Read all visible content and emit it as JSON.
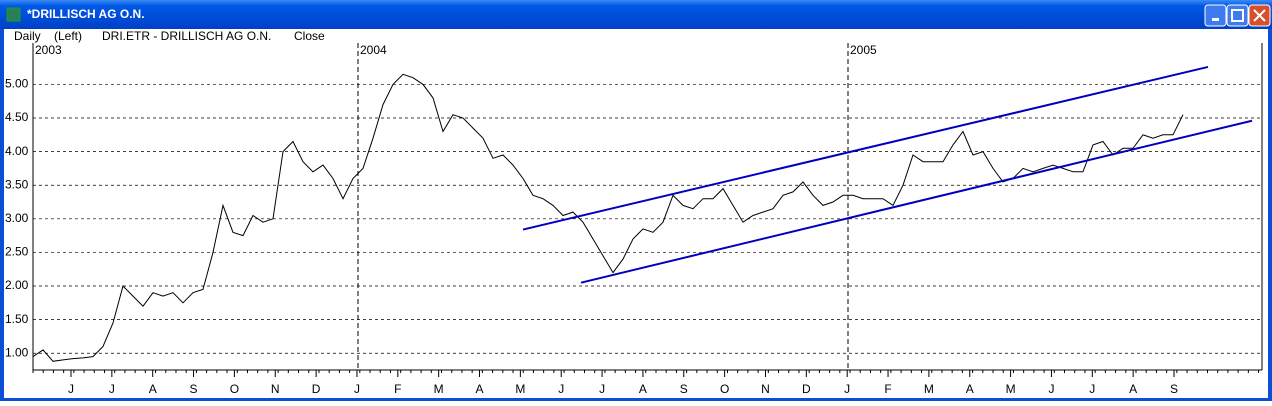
{
  "window": {
    "title": "*DRILLISCH AG O.N."
  },
  "chart_data": {
    "type": "line",
    "period": "Daily",
    "axis_side": "(Left)",
    "symbol": "DRI.ETR - DRILLISCH AG O.N.",
    "field": "Close",
    "years": [
      "2003",
      "2004",
      "2005"
    ],
    "months": [
      "J",
      "J",
      "A",
      "S",
      "O",
      "N",
      "D",
      "J",
      "F",
      "M",
      "A",
      "M",
      "J",
      "J",
      "A",
      "S",
      "O",
      "N",
      "D",
      "J",
      "F",
      "M",
      "A",
      "M",
      "J",
      "J",
      "A",
      "S"
    ],
    "ylim": [
      0.78,
      5.81
    ],
    "yticks": [
      {
        "value": 1,
        "label": "1.00"
      },
      {
        "value": 1.5,
        "label": "1.50"
      },
      {
        "value": 2,
        "label": "2.00"
      },
      {
        "value": 2.5,
        "label": "2.50"
      },
      {
        "value": 3,
        "label": "3.00"
      },
      {
        "value": 3.5,
        "label": "3.50"
      },
      {
        "value": 4,
        "label": "4.00"
      },
      {
        "value": 4.5,
        "label": "4.50"
      },
      {
        "value": 5,
        "label": "5.00"
      }
    ],
    "grid": true,
    "series": [
      {
        "color": "#000000",
        "values": [
          0.95,
          1.05,
          0.88,
          0.9,
          0.92,
          0.93,
          0.95,
          1.1,
          1.45,
          2.0,
          1.85,
          1.7,
          1.9,
          1.85,
          1.9,
          1.75,
          1.9,
          1.95,
          2.5,
          3.2,
          2.8,
          2.75,
          3.05,
          2.95,
          3.0,
          4.0,
          4.15,
          3.85,
          3.7,
          3.8,
          3.6,
          3.3,
          3.6,
          3.75,
          4.2,
          4.7,
          5.0,
          5.15,
          5.1,
          5.0,
          4.8,
          4.3,
          4.55,
          4.5,
          4.35,
          4.2,
          3.9,
          3.95,
          3.8,
          3.6,
          3.35,
          3.3,
          3.2,
          3.05,
          3.1,
          2.95,
          2.7,
          2.45,
          2.2,
          2.4,
          2.7,
          2.85,
          2.8,
          2.95,
          3.35,
          3.2,
          3.15,
          3.3,
          3.3,
          3.45,
          3.2,
          2.95,
          3.05,
          3.1,
          3.15,
          3.35,
          3.4,
          3.55,
          3.35,
          3.2,
          3.25,
          3.35,
          3.35,
          3.3,
          3.3,
          3.3,
          3.2,
          3.5,
          3.95,
          3.85,
          3.85,
          3.85,
          4.1,
          4.3,
          3.95,
          4.0,
          3.75,
          3.55,
          3.6,
          3.75,
          3.7,
          3.75,
          3.8,
          3.75,
          3.7,
          3.7,
          4.1,
          4.15,
          3.95,
          4.05,
          4.05,
          4.25,
          4.2,
          4.25,
          4.25,
          4.55
        ]
      }
    ],
    "trendlines": [
      {
        "color": "#0000c0",
        "values": [
          2.84,
          5.26
        ]
      },
      {
        "color": "#0000c0",
        "values": [
          2.05,
          4.46
        ]
      }
    ]
  }
}
